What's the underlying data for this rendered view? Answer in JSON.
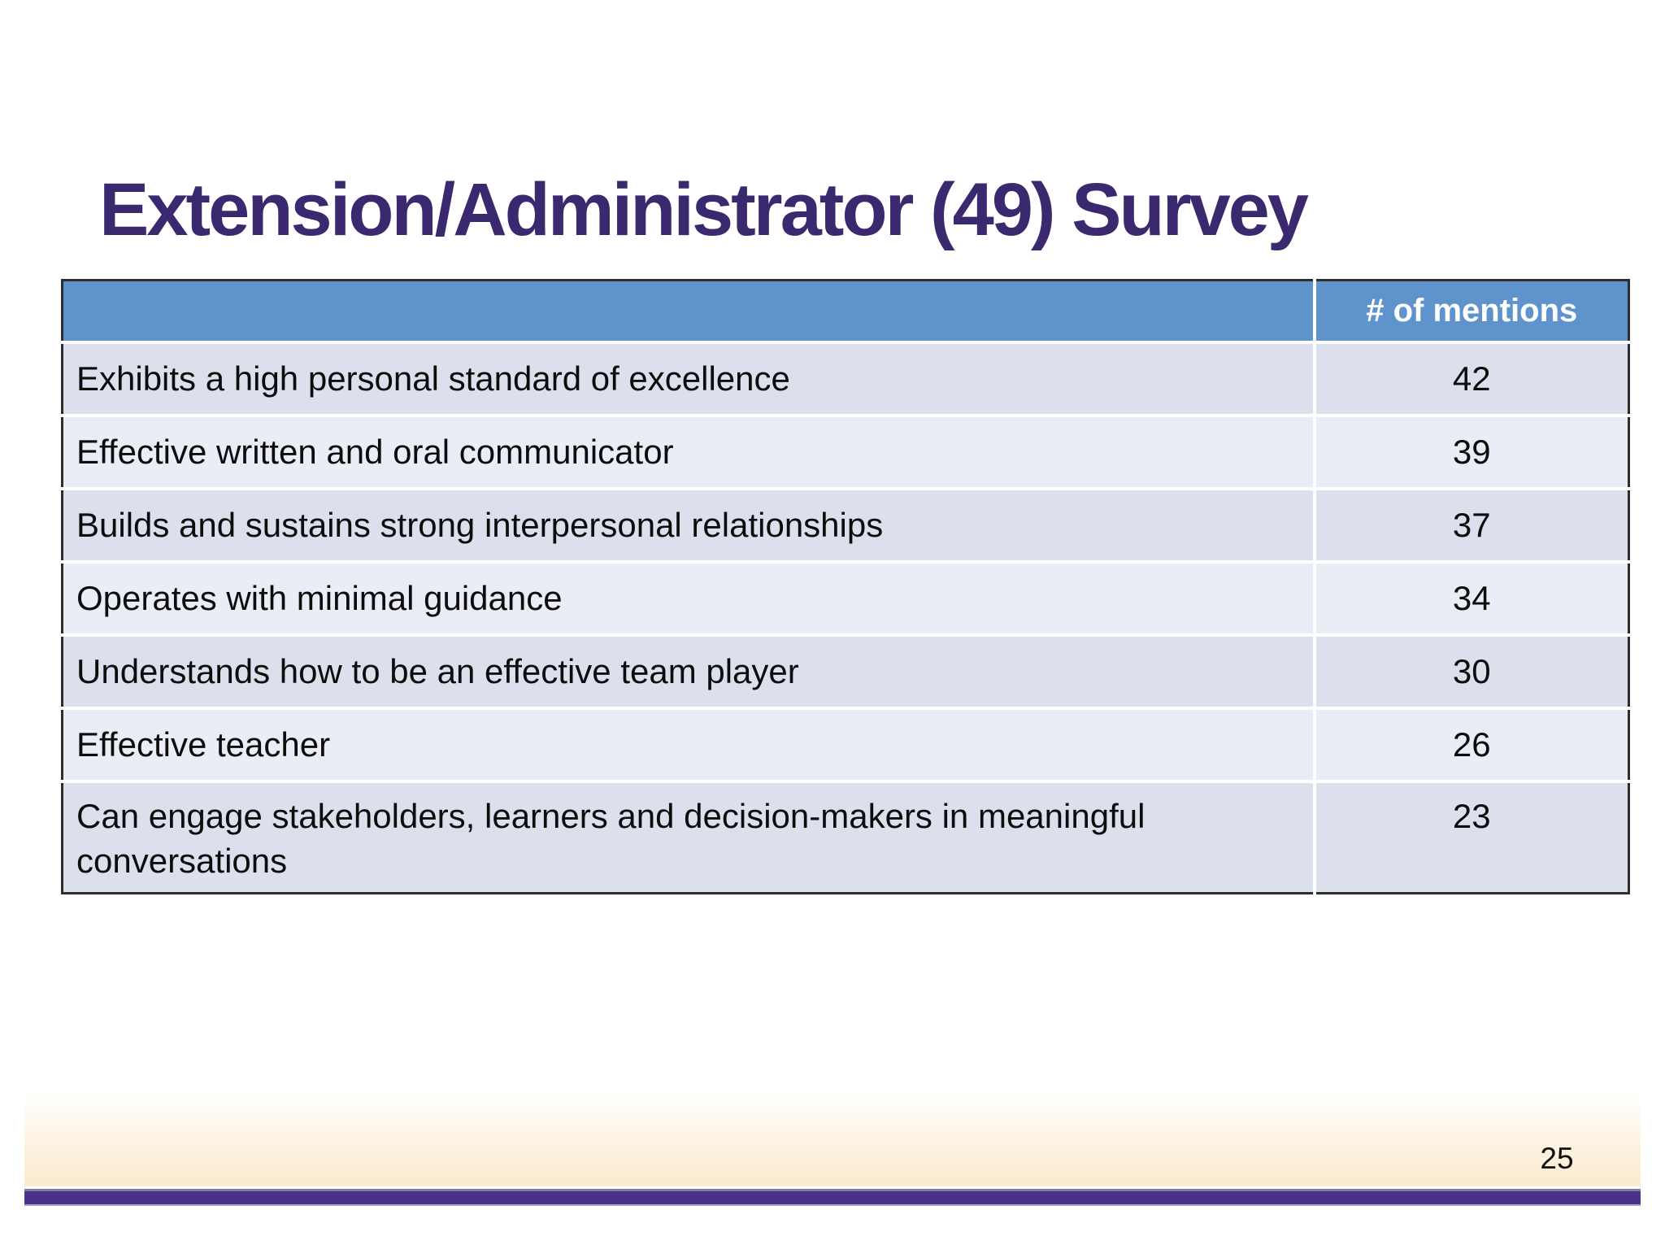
{
  "slide": {
    "title": "Extension/Administrator (49) Survey",
    "page_number": "25"
  },
  "table": {
    "header": {
      "label_col": "",
      "mentions_col": "# of mentions"
    },
    "rows": [
      {
        "label": "Exhibits a high personal standard of excellence",
        "mentions": "42"
      },
      {
        "label": "Effective written and oral communicator",
        "mentions": "39"
      },
      {
        "label": "Builds and sustains strong interpersonal relationships",
        "mentions": "37"
      },
      {
        "label": "Operates with minimal guidance",
        "mentions": "34"
      },
      {
        "label": "Understands how to be an effective team player",
        "mentions": "30"
      },
      {
        "label": "Effective teacher",
        "mentions": "26"
      },
      {
        "label": "Can engage stakeholders, learners and decision-makers in meaningful conversations",
        "mentions": "23"
      }
    ]
  },
  "chart_data": {
    "type": "table",
    "title": "Extension/Administrator (49) Survey",
    "categories": [
      "Exhibits a high personal standard of excellence",
      "Effective written and oral communicator",
      "Builds and sustains strong interpersonal relationships",
      "Operates with minimal guidance",
      "Understands how to be an effective team player",
      "Effective teacher",
      "Can engage stakeholders, learners and decision-makers in meaningful conversations"
    ],
    "values": [
      42,
      39,
      37,
      34,
      30,
      26,
      23
    ],
    "value_label": "# of mentions"
  },
  "colors": {
    "title_purple": "#3A296E",
    "header_blue": "#5E93CC",
    "row_odd": "#DBE0EC",
    "row_even": "#EAEDF5",
    "band_cream": "#FAE9CD",
    "bar_purple": "#4A3189",
    "mauve_line": "#857AA0",
    "lavender_line": "#A9A2CC"
  }
}
